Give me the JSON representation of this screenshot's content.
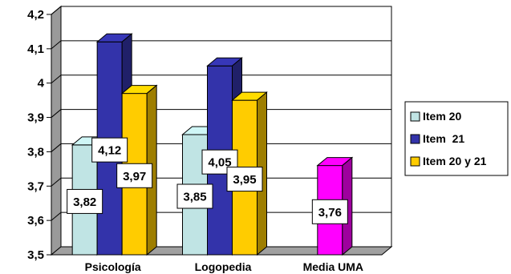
{
  "chart_data": {
    "type": "bar",
    "categories": [
      "Psicología",
      "Logopedia",
      "Media UMA"
    ],
    "series": [
      {
        "name": "Item 20",
        "color": "#c0e4e4",
        "values": [
          3.82,
          3.85,
          null
        ]
      },
      {
        "name": "Item  21",
        "color": "#3333aa",
        "values": [
          4.12,
          4.05,
          null
        ]
      },
      {
        "name": "Item 20 y 21",
        "color": "#ffcc00",
        "values": [
          3.97,
          3.95,
          null
        ]
      },
      {
        "name": "",
        "color": "#ff00ff",
        "values": [
          null,
          null,
          3.76
        ]
      }
    ],
    "data_labels": {
      "series0": [
        "3,82",
        "3,85",
        ""
      ],
      "series1": [
        "4,12",
        "4,05",
        ""
      ],
      "series2": [
        "3,97",
        "3,95",
        ""
      ],
      "series3": [
        "",
        "",
        "3,76"
      ]
    },
    "y_ticks": [
      "3,5",
      "3,6",
      "3,7",
      "3,8",
      "3,9",
      "4",
      "4,1",
      "4,2"
    ],
    "ylim": [
      3.5,
      4.2
    ],
    "grid": true,
    "legend_position": "right",
    "style": "3d-clustered-column"
  }
}
